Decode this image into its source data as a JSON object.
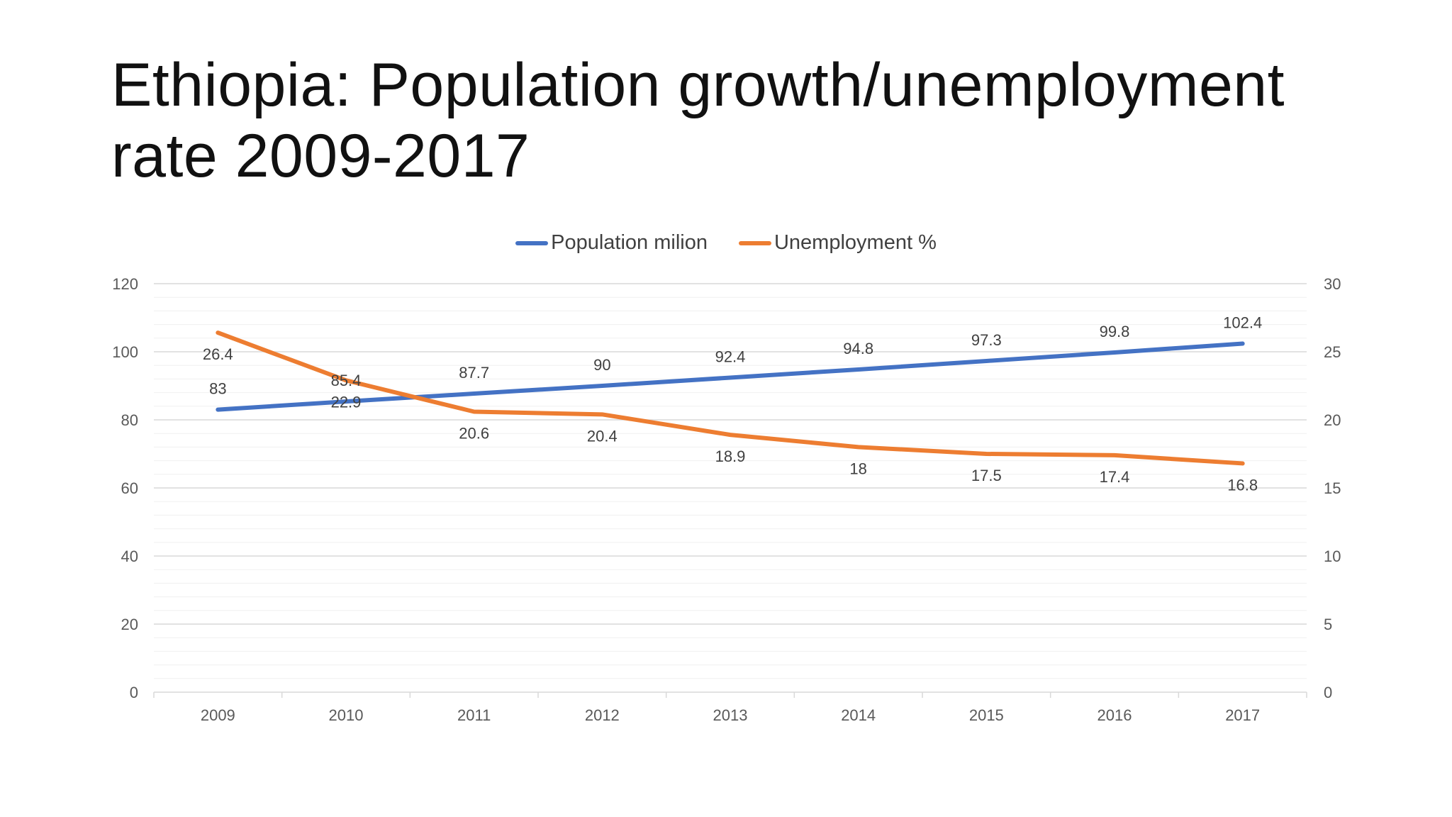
{
  "title_line1": "Ethiopia: Population growth/unemployment",
  "title_line2": "rate 2009-2017",
  "chart_data": {
    "type": "line",
    "title": "Ethiopia: Population growth/unemployment rate 2009-2017",
    "categories": [
      "2009",
      "2010",
      "2011",
      "2012",
      "2013",
      "2014",
      "2015",
      "2016",
      "2017"
    ],
    "series": [
      {
        "name": "Population milion",
        "axis": "left",
        "color": "#4472C4",
        "values": [
          83,
          85.4,
          87.7,
          90,
          92.4,
          94.8,
          97.3,
          99.8,
          102.4
        ],
        "labels": [
          "83",
          "85.4",
          "87.7",
          "90",
          "92.4",
          "94.8",
          "97.3",
          "99.8",
          "102.4"
        ]
      },
      {
        "name": "Unemployment %",
        "axis": "right",
        "color": "#ED7D31",
        "values": [
          26.4,
          22.9,
          20.6,
          20.4,
          18.9,
          18,
          17.5,
          17.4,
          16.8
        ],
        "labels": [
          "26.4",
          "22.9",
          "20.6",
          "20.4",
          "18.9",
          "18",
          "17.5",
          "17.4",
          "16.8"
        ]
      }
    ],
    "y_left": {
      "lim": [
        0,
        120
      ],
      "ticks": [
        "0",
        "20",
        "40",
        "60",
        "80",
        "100",
        "120"
      ]
    },
    "y_right": {
      "lim": [
        0,
        30
      ],
      "ticks": [
        "0",
        "5",
        "10",
        "15",
        "20",
        "25",
        "30"
      ]
    },
    "grid": true,
    "legend_position": "top-center"
  }
}
